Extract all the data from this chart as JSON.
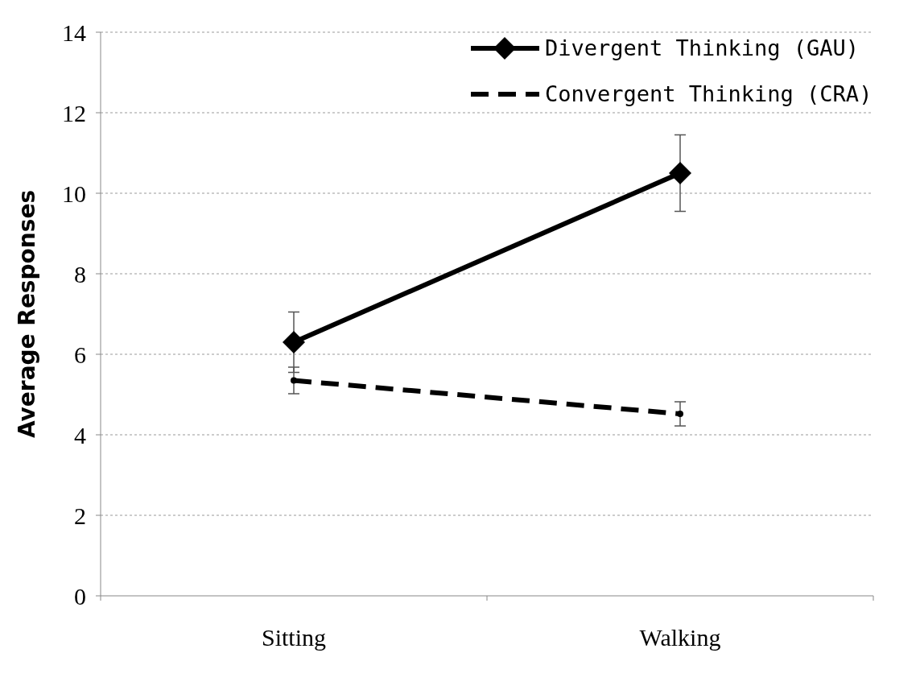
{
  "chart_data": {
    "type": "line",
    "ylabel": "Average Responses",
    "categories": [
      "Sitting",
      "Walking"
    ],
    "ylim": [
      0,
      14
    ],
    "yticks": [
      0,
      2,
      4,
      6,
      8,
      10,
      12,
      14
    ],
    "grid": "y",
    "legend": "top right",
    "series": [
      {
        "name": "Divergent Thinking (GAU)",
        "color": "#000000",
        "values": [
          6.3,
          10.5
        ],
        "errors": [
          0.75,
          0.95
        ],
        "marker": "diamond",
        "line_style": "solid"
      },
      {
        "name": "Convergent Thinking (CRA)",
        "color": "#000000",
        "values": [
          5.35,
          4.52
        ],
        "errors": [
          0.33,
          0.3
        ],
        "marker": "circle",
        "line_style": "dashed"
      }
    ]
  }
}
